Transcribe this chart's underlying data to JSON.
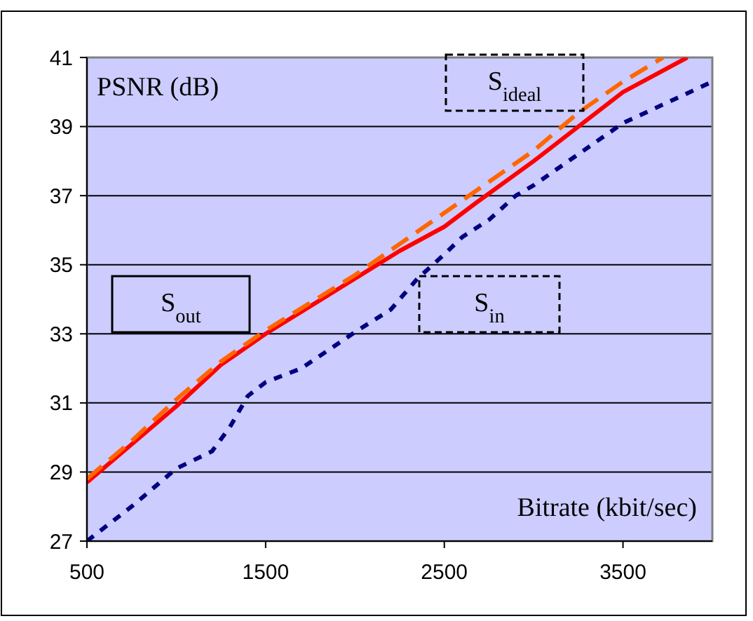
{
  "chart_data": {
    "type": "line",
    "xlabel": "Bitrate (kbit/sec)",
    "ylabel": "PSNR (dB)",
    "xlim": [
      500,
      4000
    ],
    "xticks": [
      500,
      1500,
      2500,
      3500
    ],
    "ylim": [
      27,
      41
    ],
    "yticks": [
      27,
      29,
      31,
      33,
      35,
      37,
      39,
      41
    ],
    "grid": "y",
    "series": [
      {
        "name": "S$_{out}$",
        "color": "#ff0000",
        "line_style": "solid",
        "x": [
          500,
          750,
          1000,
          1250,
          1500,
          1750,
          2000,
          2250,
          2500,
          2680,
          3000,
          3250,
          3500,
          3860
        ],
        "values": [
          28.7,
          29.8,
          30.9,
          32.1,
          33.0,
          33.8,
          34.6,
          35.4,
          36.1,
          36.8,
          38.0,
          39.0,
          40.0,
          41.0
        ]
      },
      {
        "name": "S$_{ideal}$",
        "color": "#ff6600",
        "line_style": "dashed",
        "x": [
          500,
          750,
          1000,
          1250,
          1500,
          1750,
          2000,
          2250,
          2500,
          3000,
          3250,
          3500,
          3725
        ],
        "values": [
          28.8,
          29.9,
          31.1,
          32.2,
          33.1,
          33.9,
          34.7,
          35.6,
          36.5,
          38.3,
          39.4,
          40.3,
          41.0
        ]
      },
      {
        "name": "S$_{in}$",
        "color": "#000080",
        "line_style": "dotted",
        "x": [
          500,
          750,
          1000,
          1200,
          1300,
          1400,
          1500,
          1700,
          2000,
          2200,
          2350,
          2500,
          2600,
          2750,
          2900,
          3000,
          3250,
          3500,
          4000
        ],
        "values": [
          27.0,
          28.0,
          29.1,
          29.6,
          30.3,
          31.2,
          31.6,
          32.0,
          33.05,
          33.7,
          34.6,
          35.3,
          35.8,
          36.3,
          37.0,
          37.3,
          38.2,
          39.1,
          40.3
        ]
      }
    ]
  }
}
